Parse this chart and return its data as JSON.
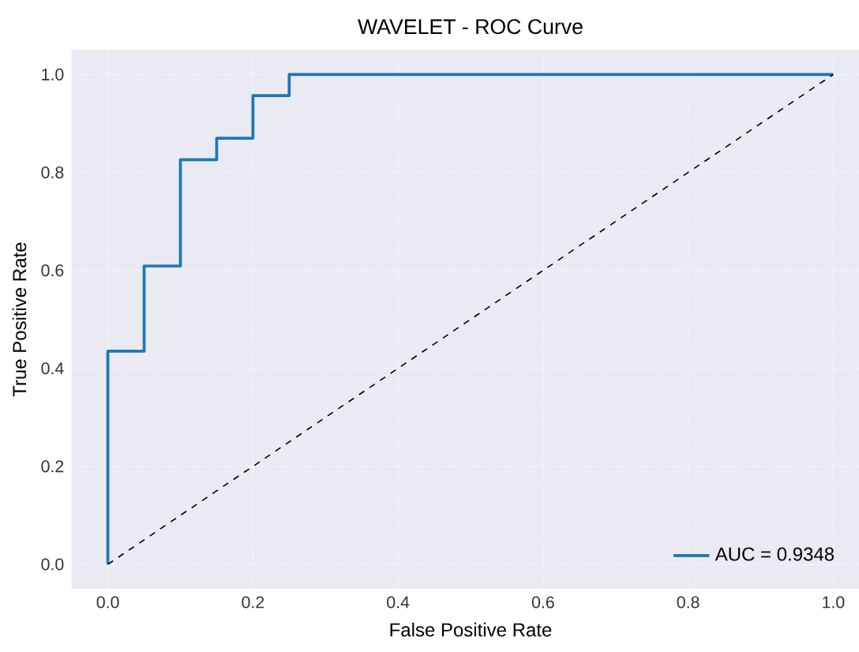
{
  "chart_data": {
    "type": "line",
    "title": "WAVELET - ROC Curve",
    "xlabel": "False Positive Rate",
    "ylabel": "True Positive Rate",
    "xlim": [
      -0.05,
      1.05
    ],
    "ylim": [
      -0.05,
      1.05
    ],
    "xticks": [
      {
        "value": 0,
        "label": "0.0"
      },
      {
        "value": 0.2,
        "label": "0.2"
      },
      {
        "value": 0.4,
        "label": "0.4"
      },
      {
        "value": 0.6,
        "label": "0.6"
      },
      {
        "value": 0.8,
        "label": "0.8"
      },
      {
        "value": 1,
        "label": "1.0"
      }
    ],
    "yticks": [
      {
        "value": 0,
        "label": "0.0"
      },
      {
        "value": 0.2,
        "label": "0.2"
      },
      {
        "value": 0.4,
        "label": "0.4"
      },
      {
        "value": 0.6,
        "label": "0.6"
      },
      {
        "value": 0.8,
        "label": "0.8"
      },
      {
        "value": 1,
        "label": "1.0"
      }
    ],
    "grid": true,
    "legend": "bottom right",
    "series": [
      {
        "name": "AUC = 0.9348",
        "color": "#1f77b4",
        "line_style": "solid",
        "x": [
          0,
          0,
          0.05,
          0.05,
          0.1,
          0.1,
          0.15,
          0.15,
          0.2,
          0.2,
          0.25,
          0.25,
          1
        ],
        "values": [
          0,
          0.435,
          0.435,
          0.609,
          0.609,
          0.826,
          0.826,
          0.87,
          0.87,
          0.957,
          0.957,
          1,
          1
        ]
      },
      {
        "color": "#000000",
        "line_style": "dashed",
        "x": [
          0,
          1
        ],
        "values": [
          0,
          1
        ]
      }
    ]
  }
}
